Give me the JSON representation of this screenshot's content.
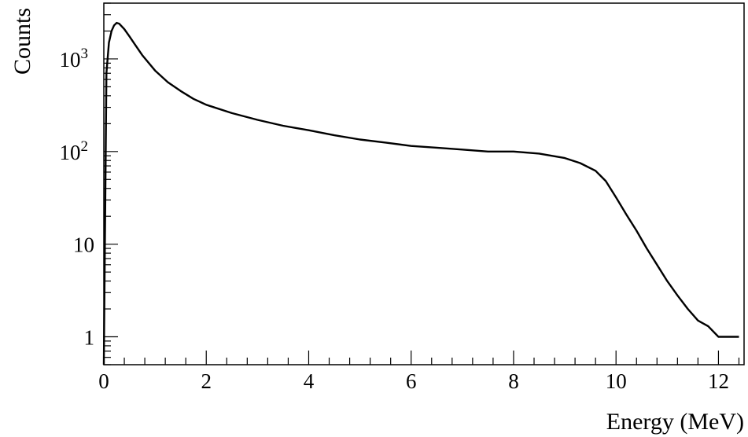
{
  "chart_data": {
    "type": "line",
    "xlabel": "Energy (MeV)",
    "ylabel": "Counts",
    "xlim": [
      0,
      12.5
    ],
    "ylim": [
      0.5,
      4000
    ],
    "y_scale": "log",
    "grid": false,
    "x_ticks": [
      {
        "value": 0,
        "label": "0"
      },
      {
        "value": 2,
        "label": "2"
      },
      {
        "value": 4,
        "label": "4"
      },
      {
        "value": 6,
        "label": "6"
      },
      {
        "value": 8,
        "label": "8"
      },
      {
        "value": 10,
        "label": "10"
      },
      {
        "value": 12,
        "label": "12"
      }
    ],
    "y_ticks": [
      {
        "value": 1,
        "base": "1",
        "exp": ""
      },
      {
        "value": 10,
        "base": "10",
        "exp": ""
      },
      {
        "value": 100,
        "base": "10",
        "exp": "2"
      },
      {
        "value": 1000,
        "base": "10",
        "exp": "3"
      }
    ],
    "series": [
      {
        "color": "#000000",
        "x": [
          0.0,
          0.05,
          0.1,
          0.15,
          0.2,
          0.25,
          0.3,
          0.4,
          0.5,
          0.6,
          0.75,
          1.0,
          1.25,
          1.5,
          1.75,
          2.0,
          2.5,
          3.0,
          3.5,
          4.0,
          4.5,
          5.0,
          5.5,
          6.0,
          6.5,
          7.0,
          7.5,
          8.0,
          8.5,
          9.0,
          9.3,
          9.6,
          9.8,
          10.0,
          10.2,
          10.4,
          10.6,
          10.8,
          11.0,
          11.2,
          11.4,
          11.6,
          11.8,
          12.0,
          12.2,
          12.4
        ],
        "y": [
          0.5,
          700,
          1500,
          2000,
          2300,
          2450,
          2400,
          2100,
          1750,
          1450,
          1100,
          750,
          560,
          450,
          370,
          320,
          260,
          220,
          190,
          170,
          150,
          135,
          125,
          115,
          110,
          105,
          100,
          100,
          95,
          85,
          75,
          62,
          48,
          32,
          21,
          14,
          9,
          6,
          4,
          2.8,
          2,
          1.5,
          1.3,
          1,
          1,
          1
        ]
      }
    ]
  }
}
